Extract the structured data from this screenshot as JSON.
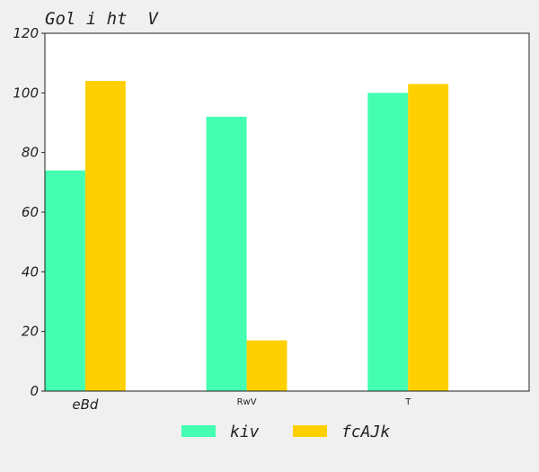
{
  "chart_data": {
    "type": "bar",
    "title": "Gol i ht  V",
    "categories": [
      "eBd",
      "RwV",
      "T"
    ],
    "series": [
      {
        "name": "kiv",
        "values": [
          74,
          92,
          100
        ],
        "color": "#44ffb1"
      },
      {
        "name": "fcAJk",
        "values": [
          104,
          17,
          103
        ],
        "color": "#ffd000"
      }
    ],
    "ylim": [
      0,
      120
    ],
    "yticks": [
      0,
      20,
      40,
      60,
      80,
      100,
      120
    ],
    "xlabel": "",
    "ylabel": "",
    "grid": false,
    "legend_position": "bottom-center"
  }
}
